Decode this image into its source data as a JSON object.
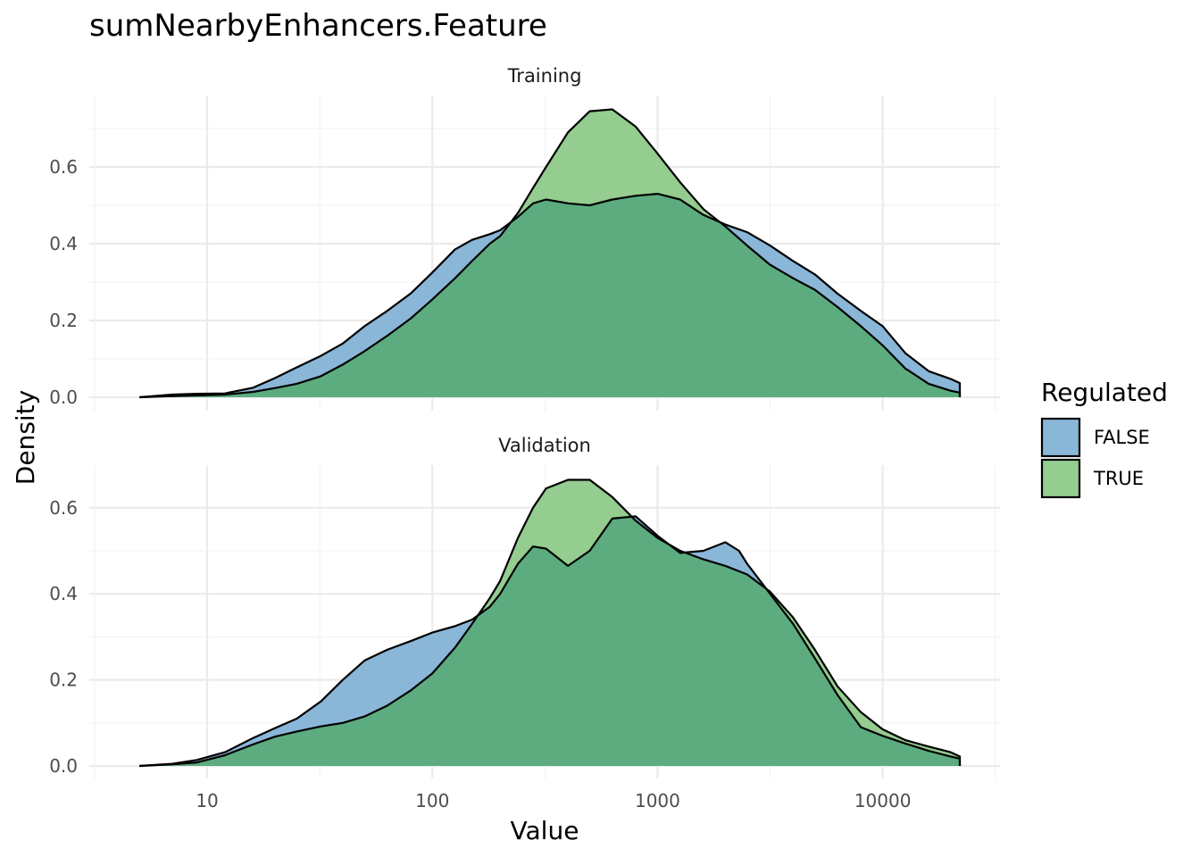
{
  "chart_data": {
    "type": "area",
    "subtype": "density",
    "title": "sumNearbyEnhancers.Feature",
    "xlabel": "Value",
    "ylabel": "Density",
    "x_scale": "log10",
    "xlim": [
      4.6,
      22000
    ],
    "x_ticks": [
      10,
      100,
      1000,
      10000
    ],
    "x_tick_labels": [
      "10",
      "100",
      "1000",
      "10000"
    ],
    "y_ticks": [
      0.0,
      0.2,
      0.4,
      0.6
    ],
    "y_tick_labels": [
      "0.0",
      "0.2",
      "0.4",
      "0.6"
    ],
    "grid": true,
    "legend": {
      "title": "Regulated",
      "position": "right",
      "entries": [
        {
          "label": "FALSE",
          "color": "#8ab6d8"
        },
        {
          "label": "TRUE",
          "color": "#94cd8f"
        }
      ]
    },
    "overlap_color": "#5cac7f",
    "panels": [
      {
        "label": "Training",
        "ylim": [
          0,
          0.78
        ],
        "series": [
          {
            "name": "FALSE",
            "x": [
              5,
              7,
              9,
              12,
              16,
              20,
              25,
              32,
              40,
              50,
              63,
              80,
              100,
              126,
              150,
              180,
              200,
              240,
              280,
              320,
              400,
              500,
              630,
              800,
              1000,
              1260,
              1600,
              2000,
              2500,
              3160,
              4000,
              5000,
              6300,
              8000,
              10000,
              12600,
              16000,
              20000,
              22000
            ],
            "y": [
              0.0,
              0.007,
              0.009,
              0.01,
              0.025,
              0.05,
              0.078,
              0.108,
              0.14,
              0.185,
              0.225,
              0.27,
              0.325,
              0.385,
              0.41,
              0.425,
              0.435,
              0.47,
              0.505,
              0.515,
              0.505,
              0.5,
              0.515,
              0.525,
              0.53,
              0.515,
              0.475,
              0.45,
              0.43,
              0.395,
              0.355,
              0.32,
              0.27,
              0.225,
              0.185,
              0.115,
              0.068,
              0.048,
              0.037
            ]
          },
          {
            "name": "TRUE",
            "x": [
              5,
              7,
              9,
              12,
              16,
              20,
              25,
              32,
              40,
              50,
              63,
              80,
              100,
              126,
              150,
              180,
              200,
              240,
              280,
              320,
              400,
              500,
              630,
              800,
              1000,
              1260,
              1600,
              2000,
              2500,
              3160,
              4000,
              5000,
              6300,
              8000,
              10000,
              12600,
              16000,
              20000,
              22000
            ],
            "y": [
              0.0,
              0.003,
              0.005,
              0.007,
              0.014,
              0.024,
              0.035,
              0.055,
              0.085,
              0.12,
              0.16,
              0.205,
              0.255,
              0.31,
              0.355,
              0.4,
              0.42,
              0.48,
              0.545,
              0.6,
              0.69,
              0.745,
              0.75,
              0.705,
              0.635,
              0.56,
              0.49,
              0.445,
              0.395,
              0.345,
              0.31,
              0.28,
              0.235,
              0.185,
              0.135,
              0.075,
              0.035,
              0.017,
              0.012
            ]
          }
        ]
      },
      {
        "label": "Validation",
        "ylim": [
          0,
          0.7
        ],
        "series": [
          {
            "name": "FALSE",
            "x": [
              5,
              7,
              9,
              12,
              16,
              20,
              25,
              32,
              40,
              50,
              63,
              80,
              100,
              126,
              150,
              180,
              200,
              240,
              280,
              320,
              400,
              500,
              630,
              800,
              1000,
              1260,
              1600,
              2000,
              2300,
              2500,
              3160,
              4000,
              5000,
              6300,
              8000,
              10000,
              12600,
              16000,
              20000,
              22000
            ],
            "y": [
              0.0,
              0.005,
              0.014,
              0.032,
              0.065,
              0.088,
              0.11,
              0.15,
              0.2,
              0.245,
              0.27,
              0.29,
              0.31,
              0.325,
              0.34,
              0.37,
              0.4,
              0.47,
              0.51,
              0.505,
              0.465,
              0.5,
              0.575,
              0.58,
              0.535,
              0.495,
              0.5,
              0.52,
              0.5,
              0.47,
              0.4,
              0.33,
              0.25,
              0.165,
              0.09,
              0.07,
              0.052,
              0.035,
              0.022,
              0.017
            ]
          },
          {
            "name": "TRUE",
            "x": [
              5,
              7,
              9,
              12,
              16,
              20,
              25,
              32,
              40,
              50,
              63,
              80,
              100,
              126,
              150,
              180,
              200,
              240,
              280,
              320,
              400,
              500,
              630,
              800,
              1000,
              1260,
              1600,
              2000,
              2500,
              3160,
              4000,
              5000,
              6300,
              8000,
              10000,
              12600,
              16000,
              20000,
              22000
            ],
            "y": [
              0.0,
              0.004,
              0.008,
              0.025,
              0.05,
              0.068,
              0.08,
              0.092,
              0.1,
              0.115,
              0.14,
              0.175,
              0.215,
              0.275,
              0.33,
              0.39,
              0.43,
              0.53,
              0.6,
              0.645,
              0.665,
              0.665,
              0.625,
              0.57,
              0.53,
              0.5,
              0.48,
              0.465,
              0.445,
              0.405,
              0.345,
              0.27,
              0.185,
              0.125,
              0.085,
              0.06,
              0.045,
              0.032,
              0.022
            ]
          }
        ]
      }
    ]
  }
}
